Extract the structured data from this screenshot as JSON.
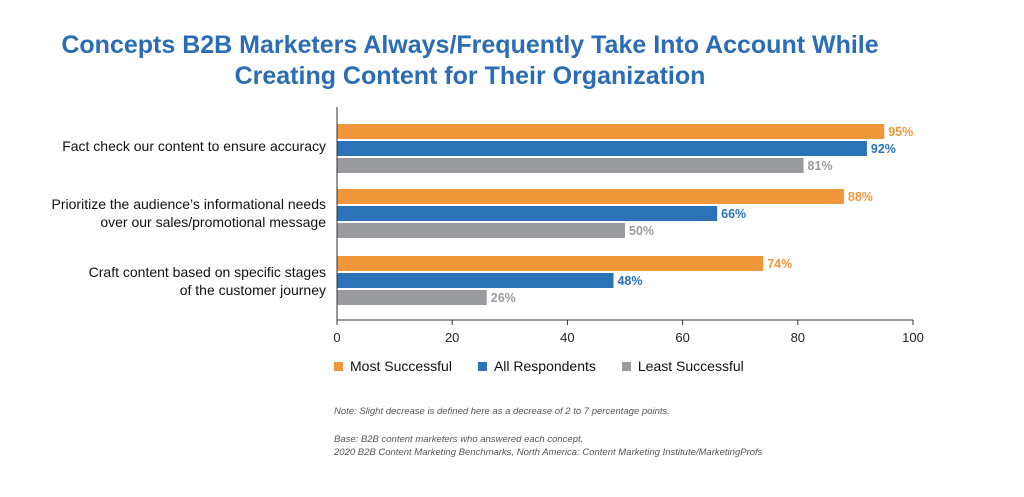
{
  "title": {
    "line1": "Concepts B2B Marketers Always/Frequently Take Into Account While",
    "line2": "Creating Content for Their Organization"
  },
  "colors": {
    "most_successful": "#f0963b",
    "all_respondents": "#2a73b7",
    "least_successful": "#9a9b9e",
    "title": "#2a6cb5"
  },
  "chart_data": {
    "type": "bar",
    "orientation": "horizontal",
    "categories": [
      [
        "Fact check our content to ensure accuracy"
      ],
      [
        "Prioritize the audience’s informational needs",
        "over our sales/promotional message"
      ],
      [
        "Craft content based on specific stages",
        "of the customer journey"
      ]
    ],
    "series": [
      {
        "name": "Most Successful",
        "values": [
          95,
          88,
          74
        ]
      },
      {
        "name": "All Respondents",
        "values": [
          92,
          66,
          48
        ]
      },
      {
        "name": "Least Successful",
        "values": [
          81,
          50,
          26
        ]
      }
    ],
    "value_suffix": "%",
    "xlim": [
      0,
      100
    ],
    "xticks": [
      0,
      20,
      40,
      60,
      80,
      100
    ],
    "legend_position": "bottom-left",
    "grid": false
  },
  "notes": {
    "note": "Note: Slight decrease is defined here as a decrease of 2 to 7 percentage points.",
    "base": "Base: B2B content marketers who answered each concept.",
    "source": "2020 B2B Content Marketing Benchmarks, North America: Content Marketing Institute/MarketingProfs"
  }
}
